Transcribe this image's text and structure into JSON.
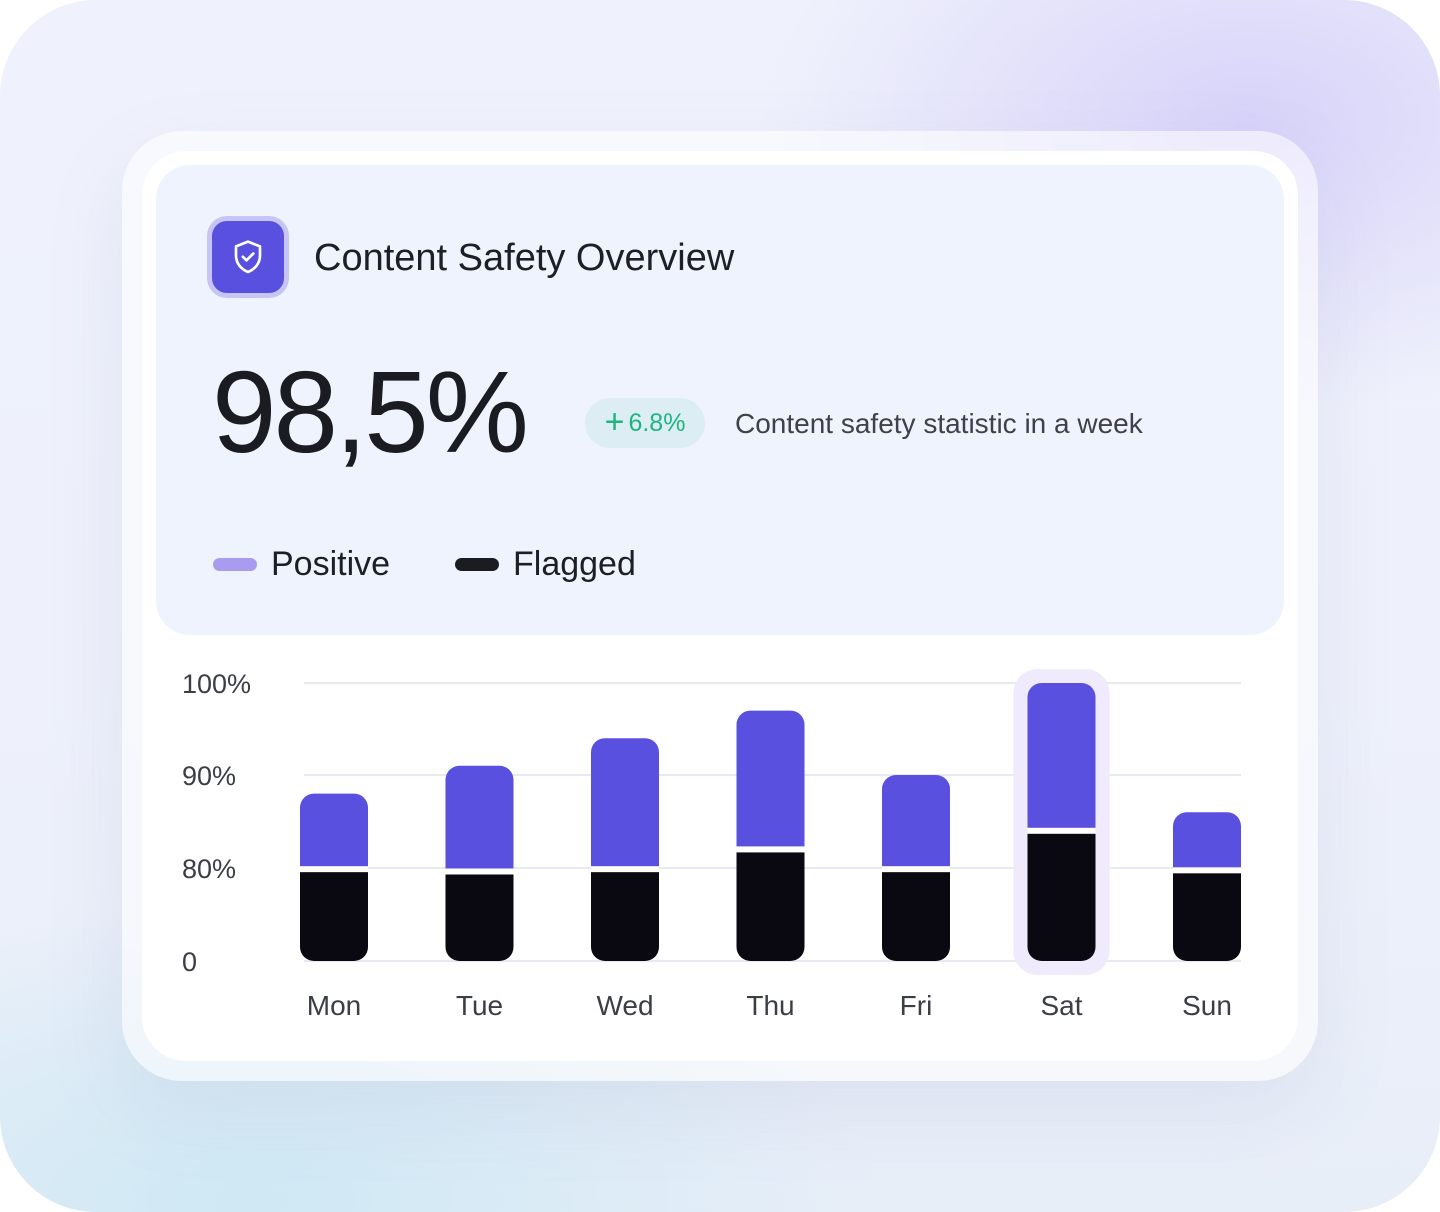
{
  "header": {
    "title": "Content Safety Overview",
    "icon": "shield-check-icon"
  },
  "summary": {
    "value": "98,5%",
    "change": "6.8%",
    "change_sign": "+",
    "description": "Content safety statistic in a week"
  },
  "colors": {
    "positive": "#5a50e0",
    "positive_legend": "#a99bf0",
    "flagged": "#0a0912",
    "highlight": "#efeafc",
    "change": "#1fb482"
  },
  "chart_data": {
    "type": "bar",
    "stacked": true,
    "categories": [
      "Mon",
      "Tue",
      "Wed",
      "Thu",
      "Fri",
      "Sat",
      "Sun"
    ],
    "y_ticks": [
      "0",
      "80%",
      "90%",
      "100%"
    ],
    "series": [
      {
        "name": "Flagged",
        "values": [
          79,
          77,
          79,
          82,
          79,
          84,
          78
        ]
      },
      {
        "name": "Positive",
        "values": [
          88,
          91,
          94,
          97,
          90,
          100,
          86
        ]
      }
    ],
    "highlighted_category": "Sat",
    "grid": true,
    "legend_position": "top-left"
  }
}
